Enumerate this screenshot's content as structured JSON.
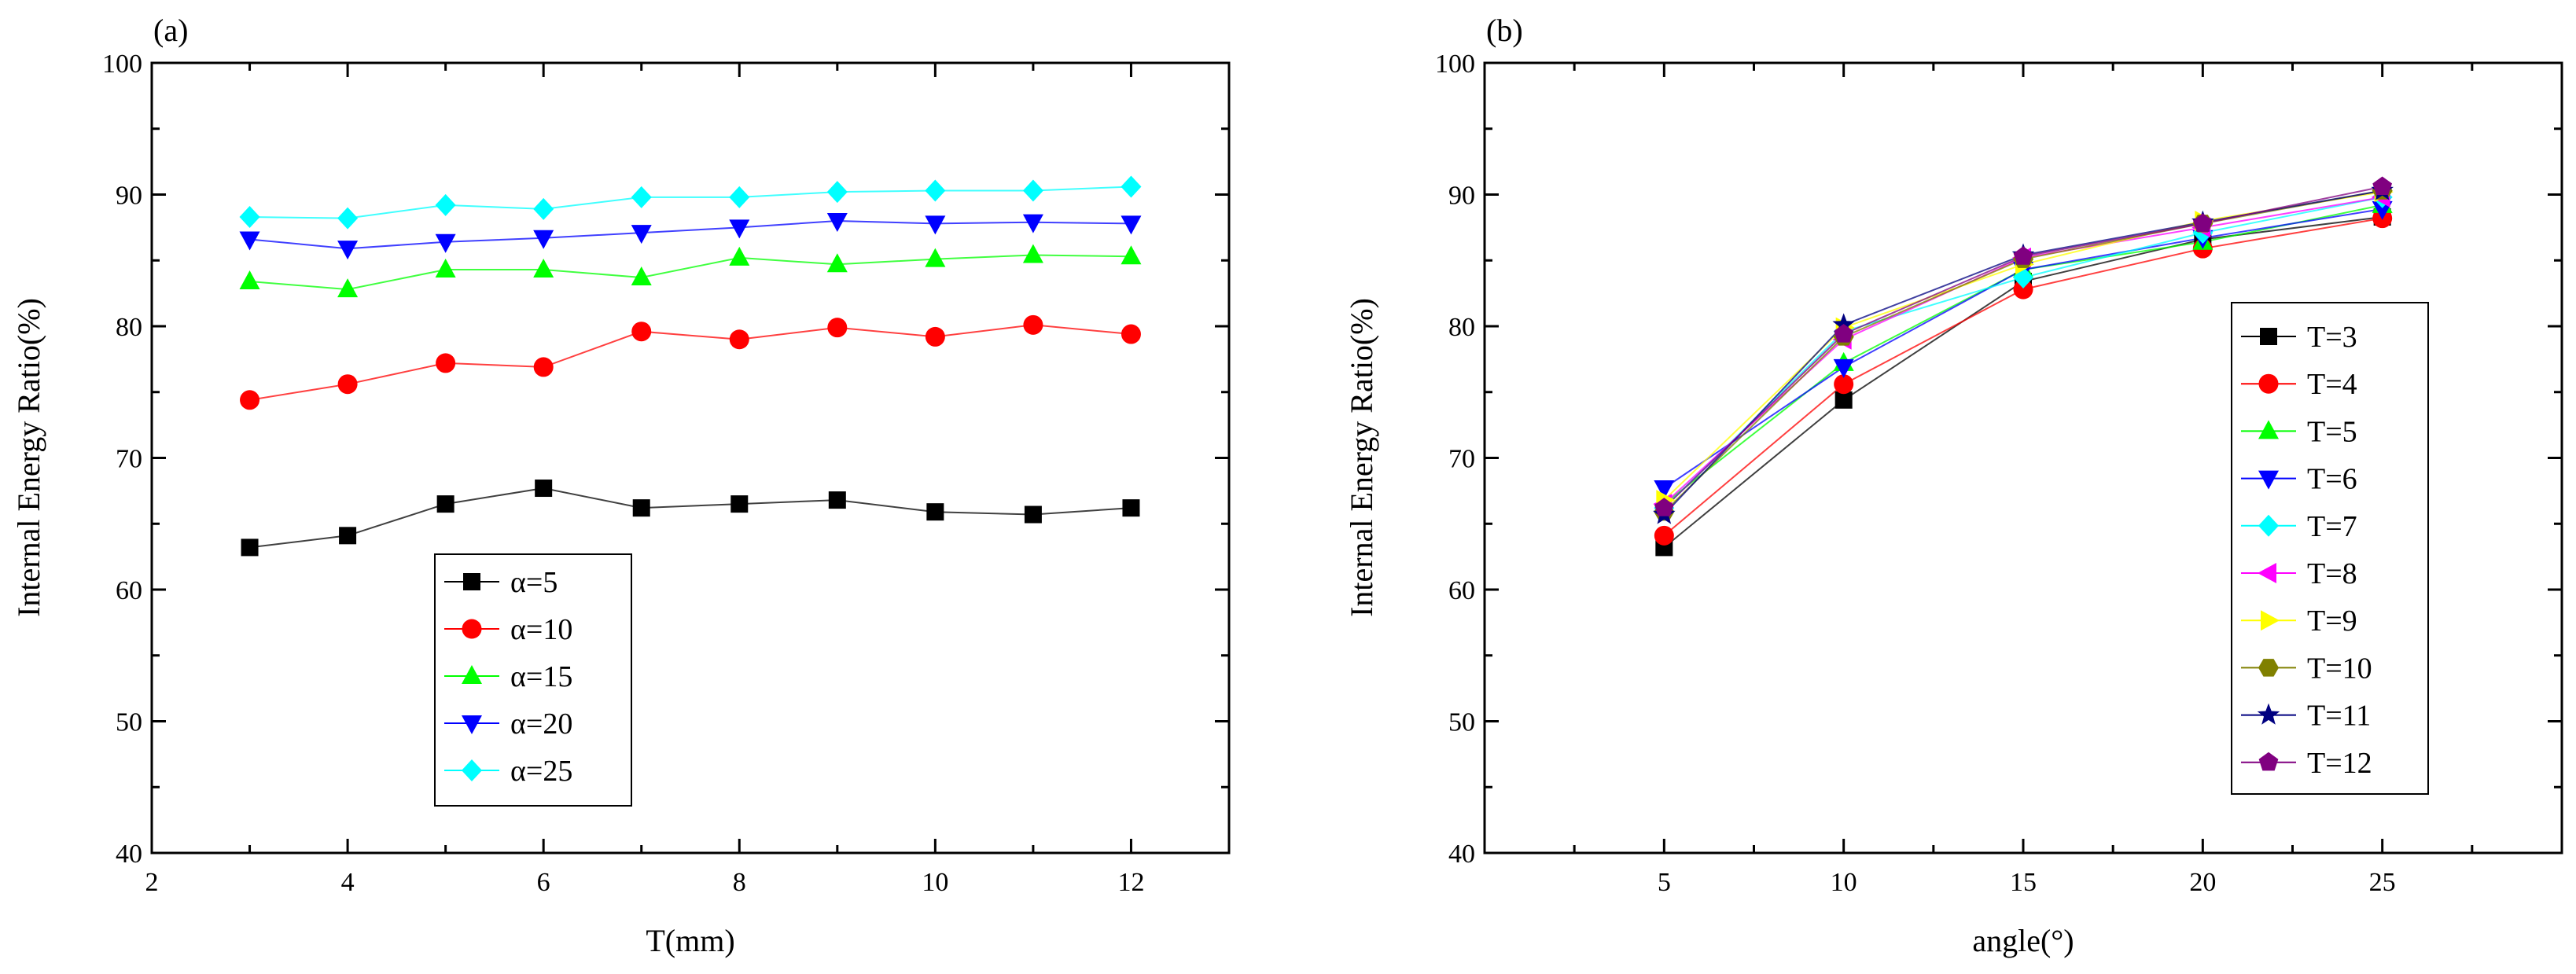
{
  "chart_data": [
    {
      "panel_label": "(a)",
      "type": "line",
      "xlabel": "T(mm)",
      "ylabel": "Internal Energy Ratio(%)",
      "xlim": [
        2,
        13
      ],
      "ylim": [
        40,
        100
      ],
      "xticks": [
        2,
        4,
        6,
        8,
        10,
        12
      ],
      "yticks": [
        40,
        50,
        60,
        70,
        80,
        90,
        100
      ],
      "legend_position": "lower-center",
      "x": [
        3,
        4,
        5,
        6,
        7,
        8,
        9,
        10,
        11,
        12
      ],
      "series": [
        {
          "name": "α=5",
          "marker": "square",
          "color": "#000000",
          "values": [
            63.2,
            64.1,
            66.5,
            67.7,
            66.2,
            66.5,
            66.8,
            65.9,
            65.7,
            66.2
          ]
        },
        {
          "name": "α=10",
          "marker": "circle",
          "color": "#ff0000",
          "values": [
            74.4,
            75.6,
            77.2,
            76.9,
            79.6,
            79.0,
            79.9,
            79.2,
            80.1,
            79.4
          ]
        },
        {
          "name": "α=15",
          "marker": "triangle",
          "color": "#00ff00",
          "values": [
            83.4,
            82.8,
            84.3,
            84.3,
            83.7,
            85.2,
            84.7,
            85.1,
            85.4,
            85.3
          ]
        },
        {
          "name": "α=20",
          "marker": "tri-down",
          "color": "#0000ff",
          "values": [
            86.6,
            85.9,
            86.4,
            86.7,
            87.1,
            87.5,
            88.0,
            87.8,
            87.9,
            87.8
          ]
        },
        {
          "name": "α=25",
          "marker": "diamond",
          "color": "#00ffff",
          "values": [
            88.3,
            88.2,
            89.2,
            88.9,
            89.8,
            89.8,
            90.2,
            90.3,
            90.3,
            90.6
          ]
        }
      ]
    },
    {
      "panel_label": "(b)",
      "type": "line",
      "xlabel": "angle(°)",
      "ylabel": "Internal Energy Ratio(%)",
      "xlim": [
        0,
        30
      ],
      "ylim": [
        40,
        100
      ],
      "xticks": [
        5,
        10,
        15,
        20,
        25
      ],
      "yticks": [
        40,
        50,
        60,
        70,
        80,
        90,
        100
      ],
      "legend_position": "center-right",
      "x": [
        5,
        10,
        15,
        20,
        25
      ],
      "series": [
        {
          "name": "T=3",
          "marker": "square",
          "color": "#000000",
          "values": [
            63.2,
            74.4,
            83.4,
            86.6,
            88.3
          ]
        },
        {
          "name": "T=4",
          "marker": "circle",
          "color": "#ff0000",
          "values": [
            64.1,
            75.6,
            82.8,
            85.9,
            88.2
          ]
        },
        {
          "name": "T=5",
          "marker": "triangle",
          "color": "#00ff00",
          "values": [
            66.5,
            77.2,
            84.3,
            86.4,
            89.2
          ]
        },
        {
          "name": "T=6",
          "marker": "tri-down",
          "color": "#0000ff",
          "values": [
            67.7,
            76.9,
            84.3,
            86.7,
            88.9
          ]
        },
        {
          "name": "T=7",
          "marker": "diamond",
          "color": "#00ffff",
          "values": [
            66.2,
            79.6,
            83.7,
            87.1,
            89.8
          ]
        },
        {
          "name": "T=8",
          "marker": "tri-left",
          "color": "#ff00ff",
          "values": [
            66.5,
            79.0,
            85.2,
            87.5,
            89.8
          ]
        },
        {
          "name": "T=9",
          "marker": "tri-right",
          "color": "#ffff00",
          "values": [
            66.8,
            79.9,
            84.7,
            88.0,
            90.2
          ]
        },
        {
          "name": "T=10",
          "marker": "hexagon",
          "color": "#808000",
          "values": [
            65.9,
            79.2,
            85.1,
            87.8,
            90.3
          ]
        },
        {
          "name": "T=11",
          "marker": "star",
          "color": "#000080",
          "values": [
            65.7,
            80.1,
            85.4,
            87.9,
            90.3
          ]
        },
        {
          "name": "T=12",
          "marker": "pentagon",
          "color": "#800080",
          "values": [
            66.2,
            79.4,
            85.3,
            87.8,
            90.6
          ]
        }
      ]
    }
  ]
}
